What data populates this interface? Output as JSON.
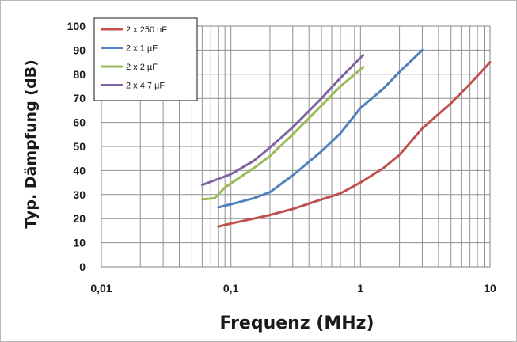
{
  "chart_data": {
    "type": "line",
    "xscale": "log",
    "xlim": [
      0.01,
      10
    ],
    "ylim": [
      0,
      100
    ],
    "xlabel": "Frequenz (MHz)",
    "ylabel": "Typ. Dämpfung (dB)",
    "grid": true,
    "legend_position": "top-left",
    "x_ticks": [
      {
        "value": 0.01,
        "label": "0,01"
      },
      {
        "value": 0.1,
        "label": "0,1"
      },
      {
        "value": 1,
        "label": "1"
      },
      {
        "value": 10,
        "label": "10"
      }
    ],
    "y_ticks": [
      {
        "value": 0,
        "label": "0"
      },
      {
        "value": 10,
        "label": "10"
      },
      {
        "value": 20,
        "label": "20"
      },
      {
        "value": 30,
        "label": "30"
      },
      {
        "value": 40,
        "label": "40"
      },
      {
        "value": 50,
        "label": "50"
      },
      {
        "value": 60,
        "label": "60"
      },
      {
        "value": 70,
        "label": "70"
      },
      {
        "value": 80,
        "label": "80"
      },
      {
        "value": 90,
        "label": "90"
      },
      {
        "value": 100,
        "label": "100"
      }
    ],
    "series": [
      {
        "name": "2 x 250 nF",
        "color": "#c0504d",
        "x": [
          0.08,
          0.1,
          0.15,
          0.2,
          0.3,
          0.5,
          0.7,
          1,
          1.5,
          2,
          3,
          5,
          7,
          10
        ],
        "y": [
          16.7,
          18,
          20,
          21.5,
          24,
          28,
          30.5,
          35,
          41,
          46.5,
          57.5,
          68,
          76,
          85
        ]
      },
      {
        "name": "2 x 1 µF",
        "color": "#4f81bd",
        "x": [
          0.08,
          0.1,
          0.15,
          0.2,
          0.3,
          0.5,
          0.7,
          1,
          1.5,
          2,
          3
        ],
        "y": [
          24.7,
          26,
          28.5,
          31,
          38,
          48,
          55.5,
          66,
          74,
          81,
          90
        ]
      },
      {
        "name": "2 x 2 µF",
        "color": "#9bbb59",
        "x": [
          0.06,
          0.075,
          0.09,
          0.12,
          0.15,
          0.2,
          0.3,
          0.5,
          0.7,
          1.05
        ],
        "y": [
          28,
          28.5,
          33,
          37.5,
          41,
          46,
          55,
          67,
          75,
          83
        ]
      },
      {
        "name": "2 x 4,7 µF",
        "color": "#8064a2",
        "x": [
          0.06,
          0.08,
          0.1,
          0.15,
          0.2,
          0.3,
          0.5,
          0.7,
          1.05
        ],
        "y": [
          34,
          36.5,
          38.5,
          44,
          49.5,
          58,
          70,
          78.5,
          88
        ]
      }
    ]
  }
}
